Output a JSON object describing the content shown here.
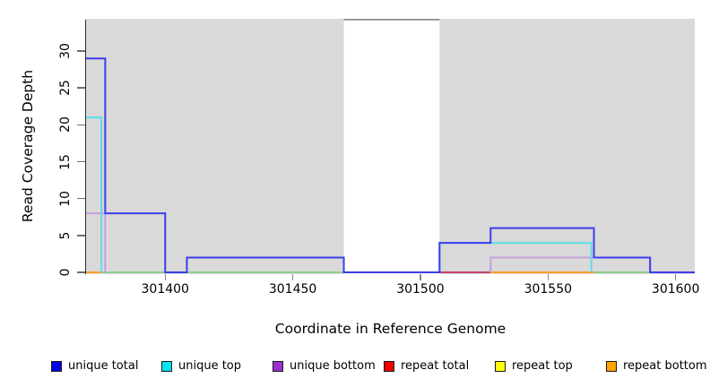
{
  "figure": {
    "xlabel": "Coordinate in Reference Genome",
    "ylabel": "Read Coverage Depth"
  },
  "legend": {
    "items": [
      {
        "label": "unique total",
        "color": "#0000EE"
      },
      {
        "label": "unique top",
        "color": "#00E5EE"
      },
      {
        "label": "unique bottom",
        "color": "#9B30D2"
      },
      {
        "label": "repeat total",
        "color": "#EE0000"
      },
      {
        "label": "repeat top",
        "color": "#FFFF00"
      },
      {
        "label": "repeat bottom",
        "color": "#FFA500"
      }
    ]
  },
  "chart_data": {
    "type": "line",
    "subtype": "step-coverage",
    "title": "",
    "xlabel": "Coordinate in Reference Genome",
    "ylabel": "Read Coverage Depth",
    "xlim": [
      301369,
      301607.5
    ],
    "ylim": [
      0,
      34.4
    ],
    "x_ticks": [
      301400,
      301450,
      301500,
      301550,
      301600
    ],
    "y_ticks": [
      0,
      5,
      10,
      15,
      20,
      25,
      30
    ],
    "grid": false,
    "plot_background": "#D9D9D9",
    "masked_region": {
      "from": 301470,
      "to": 301507.5,
      "color": "#FFFFFF",
      "top_border_color": "#8C8C8C"
    },
    "series": [
      {
        "name": "unique total",
        "color": "#3D3DED",
        "style": "step",
        "points": [
          [
            301369,
            29
          ],
          [
            301376.5,
            8
          ],
          [
            301400,
            0
          ],
          [
            301408.5,
            2
          ],
          [
            301470,
            0
          ],
          [
            301507.5,
            4
          ],
          [
            301527.5,
            6
          ],
          [
            301568,
            2
          ],
          [
            301590,
            0
          ],
          [
            301607.5,
            0
          ]
        ]
      },
      {
        "name": "unique top",
        "color": "#5CDFE8",
        "style": "step-segments",
        "segments": [
          {
            "from": 301369,
            "to": 301375,
            "depth": 21
          },
          {
            "from": 301507.5,
            "to": 301567,
            "depth": 4
          }
        ]
      },
      {
        "name": "unique bottom",
        "color": "#C79EDB",
        "style": "step-segments",
        "segments": [
          {
            "from": 301369,
            "to": 301376.5,
            "depth": 8
          },
          {
            "from": 301527.5,
            "to": 301590,
            "depth": 2
          }
        ]
      },
      {
        "name": "repeat total",
        "color": "#EE0000",
        "style": "constant",
        "depth": 0
      },
      {
        "name": "repeat top",
        "color": "#FFFF00",
        "style": "constant",
        "depth": 0
      },
      {
        "name": "repeat bottom",
        "color": "#FFA500",
        "style": "constant",
        "depth": 0
      }
    ],
    "zero_line_segments": [
      {
        "from": 301369,
        "to": 301375,
        "color": "#FF9D26"
      },
      {
        "from": 301375,
        "to": 301400,
        "color": "#8FD08F"
      },
      {
        "from": 301408.5,
        "to": 301470,
        "color": "#8FD08F"
      },
      {
        "from": 301507.5,
        "to": 301527.5,
        "color": "#C4426F"
      },
      {
        "from": 301527.5,
        "to": 301568,
        "color": "#FF9D26"
      },
      {
        "from": 301568,
        "to": 301590,
        "color": "#8FD08F"
      }
    ]
  }
}
